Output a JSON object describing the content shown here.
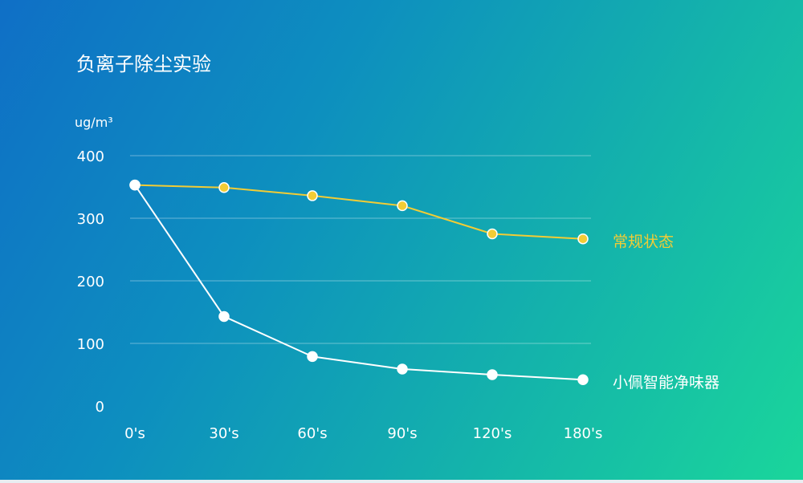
{
  "chart_data": {
    "type": "line",
    "title": "负离子除尘实验",
    "ylabel": "ug/m³",
    "categories": [
      "0's",
      "30's",
      "60's",
      "90's",
      "120's",
      "180's"
    ],
    "yticks": [
      "0",
      "100",
      "200",
      "300",
      "400"
    ],
    "ylim": [
      0,
      400
    ],
    "grid": true,
    "series": [
      {
        "name": "常规状态",
        "color": "#f2cc35",
        "values": [
          353,
          349,
          336,
          320,
          275,
          267
        ]
      },
      {
        "name": "小佩智能净味器",
        "color": "#ffffff",
        "values": [
          353,
          143,
          79,
          59,
          50,
          42
        ]
      }
    ]
  }
}
